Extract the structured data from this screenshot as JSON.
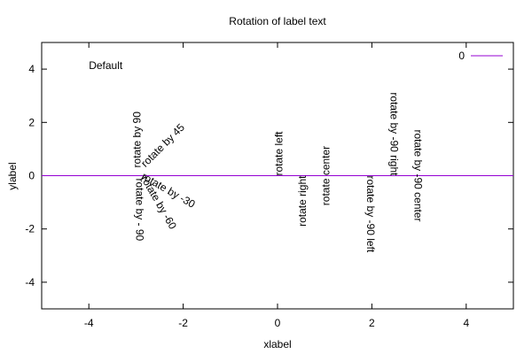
{
  "chart_data": {
    "type": "line",
    "title": "Rotation of label text",
    "xlabel": "xlabel",
    "ylabel": "ylabel",
    "xlim": [
      -5,
      5
    ],
    "ylim": [
      -5,
      5
    ],
    "xticks": [
      -4,
      -2,
      0,
      2,
      4
    ],
    "yticks": [
      -4,
      -2,
      0,
      2,
      4
    ],
    "grid": false,
    "legend_position": "top-right",
    "series": [
      {
        "name": "0",
        "color": "#9400d3",
        "x": [
          -5,
          5
        ],
        "y": [
          0,
          0
        ]
      }
    ],
    "annotations": [
      {
        "text": "Default",
        "x": -4,
        "y": 4,
        "rotate": 0,
        "anchor": "start"
      },
      {
        "text": "rotate by 90",
        "x": -2.9,
        "y": 0.3,
        "rotate": 90,
        "anchor": "start"
      },
      {
        "text": "rotate by 45",
        "x": -2.8,
        "y": 0.3,
        "rotate": 45,
        "anchor": "start"
      },
      {
        "text": "rotate by -30",
        "x": -2.9,
        "y": -0.1,
        "rotate": -30,
        "anchor": "start"
      },
      {
        "text": "rotate by -60",
        "x": -2.9,
        "y": -0.1,
        "rotate": -60,
        "anchor": "start"
      },
      {
        "text": "rotate by - 90",
        "x": -3.0,
        "y": -0.1,
        "rotate": -90,
        "anchor": "start"
      },
      {
        "text": "rotate left",
        "x": 0.1,
        "y": 0.0,
        "rotate": 90,
        "anchor": "start"
      },
      {
        "text": "rotate right",
        "x": 0.6,
        "y": 0.0,
        "rotate": 90,
        "anchor": "end"
      },
      {
        "text": "rotate center",
        "x": 1.1,
        "y": 0.0,
        "rotate": 90,
        "anchor": "middle"
      },
      {
        "text": "rotate by -90 left",
        "x": 1.9,
        "y": 0.0,
        "rotate": -90,
        "anchor": "start"
      },
      {
        "text": "rotate by -90 right",
        "x": 2.4,
        "y": 0.0,
        "rotate": -90,
        "anchor": "end"
      },
      {
        "text": "rotate by -90 center",
        "x": 2.9,
        "y": 0.0,
        "rotate": -90,
        "anchor": "middle"
      }
    ]
  }
}
